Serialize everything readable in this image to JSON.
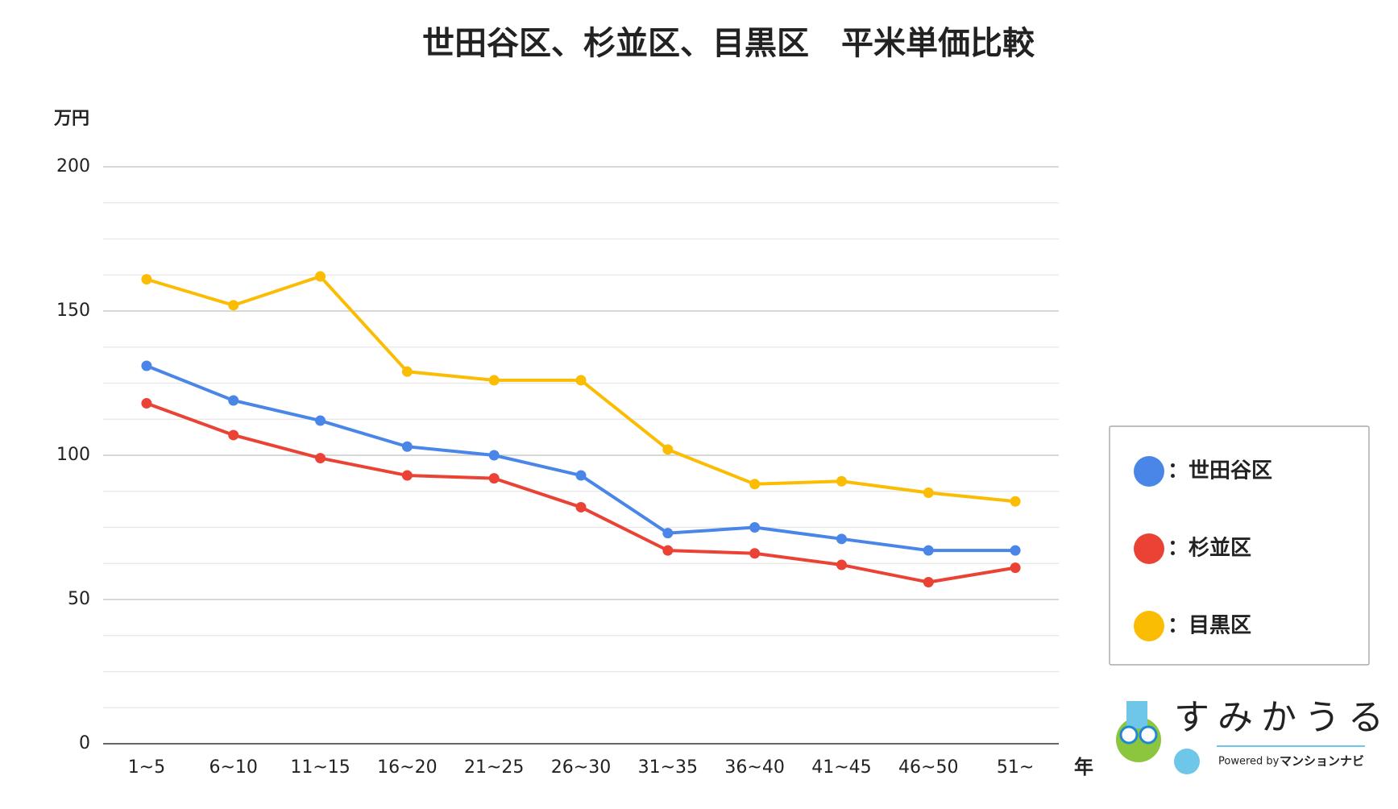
{
  "chart_data": {
    "type": "line",
    "title": "世田谷区、杉並区、目黒区　平米単価比較",
    "y_axis_label": "万円",
    "x_axis_label": "年",
    "categories": [
      "1~5",
      "6~10",
      "11~15",
      "16~20",
      "21~25",
      "26~30",
      "31~35",
      "36~40",
      "41~45",
      "46~50",
      "51~"
    ],
    "series": [
      {
        "name": "：世田谷区",
        "color": "#4a86e8",
        "values": [
          131,
          119,
          112,
          103,
          100,
          93,
          73,
          75,
          71,
          67,
          67
        ]
      },
      {
        "name": "：杉並区",
        "color": "#ea4335",
        "values": [
          118,
          107,
          99,
          93,
          92,
          82,
          67,
          66,
          62,
          56,
          61
        ]
      },
      {
        "name": "：目黒区",
        "color": "#fbbc04",
        "values": [
          161,
          152,
          162,
          129,
          126,
          126,
          102,
          90,
          91,
          87,
          84
        ]
      }
    ],
    "ylim": [
      0,
      200
    ],
    "yticks": [
      0,
      50,
      100,
      150,
      200
    ],
    "grid": true,
    "legend": "right"
  },
  "logo": {
    "name": "すみかうる",
    "powered": "Powered by",
    "brand": "マンションナビ"
  }
}
